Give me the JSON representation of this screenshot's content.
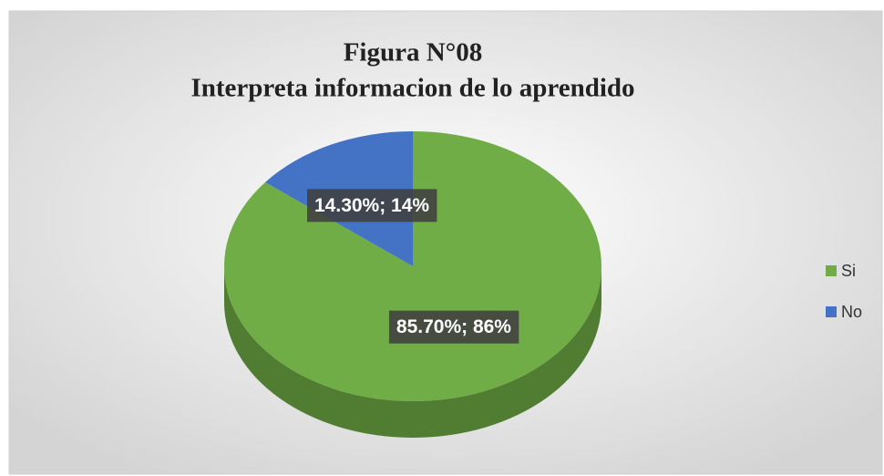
{
  "chart_data": {
    "type": "pie",
    "title": "Figura N°08",
    "subtitle": "Interpreta informacion de lo aprendido",
    "categories": [
      "Si",
      "No"
    ],
    "values": [
      85.7,
      14.3
    ],
    "value_labels": [
      "85.70%; 86%",
      "14.30%; 14%"
    ],
    "colors": [
      "#70ad47",
      "#4472c4"
    ],
    "legend": "right"
  }
}
